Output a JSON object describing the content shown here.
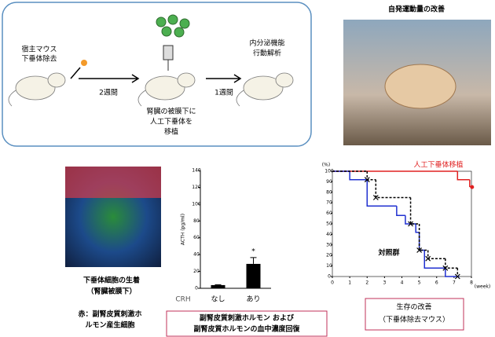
{
  "diagram": {
    "step1": [
      "宿主マウス",
      "下垂体除去"
    ],
    "interval1": "2週間",
    "step2": [
      "腎臓の被膜下に",
      "人工下垂体を",
      "移植"
    ],
    "interval2": "1週間",
    "step3": [
      "内分泌機能",
      "行動解析"
    ]
  },
  "photo": {
    "title": "自発運動量の改善"
  },
  "micrograph": {
    "caption": [
      "下垂体細胞の生着",
      "（腎臓被膜下）"
    ],
    "note": [
      "赤：副腎皮質刺激ホ",
      "ルモン産生細胞"
    ]
  },
  "chart_data": [
    {
      "type": "bar",
      "ylabel": "ACTH (pg/ml)",
      "xlabel": "CRH",
      "categories": [
        "なし",
        "あり"
      ],
      "values": [
        3.8,
        29
      ],
      "errors": [
        0.5,
        7.5
      ],
      "color": "#000000",
      "annotation": "*",
      "ylim": [
        0,
        140
      ],
      "yticks": [
        0,
        20,
        40,
        60,
        80,
        100,
        120,
        140
      ],
      "caption": [
        "副腎皮質刺激ホルモン および",
        "副腎皮質ホルモンの血中濃度回復"
      ]
    },
    {
      "type": "step",
      "ylabel": "(%)",
      "xlabel": "(week)",
      "xlim": [
        0,
        8
      ],
      "ylim": [
        0,
        100
      ],
      "xticks": [
        0,
        1,
        2,
        3,
        4,
        5,
        6,
        7,
        8
      ],
      "yticks": [
        0,
        10,
        20,
        30,
        40,
        50,
        60,
        70,
        80,
        90,
        100
      ],
      "series": [
        {
          "name": "人工下垂体移植",
          "color": "#e02020",
          "x": [
            0,
            7.2,
            7.9
          ],
          "values": [
            100,
            92,
            85
          ]
        },
        {
          "name": "対照群",
          "color": "#2030d0",
          "x": [
            0,
            1,
            2,
            3.7,
            4.2,
            4.8,
            5,
            5.3,
            6.5,
            7.3
          ],
          "values": [
            100,
            92,
            67,
            58,
            50,
            42,
            25,
            8,
            0,
            0
          ]
        },
        {
          "color": "#000000",
          "x": [
            0,
            2,
            2.5,
            4.5,
            5,
            5.5,
            6.5,
            7.2
          ],
          "values": [
            100,
            92,
            75,
            50,
            25,
            17,
            8,
            0
          ]
        }
      ],
      "caption": [
        "生存の改善",
        "（下垂体除去マウス）"
      ]
    }
  ]
}
